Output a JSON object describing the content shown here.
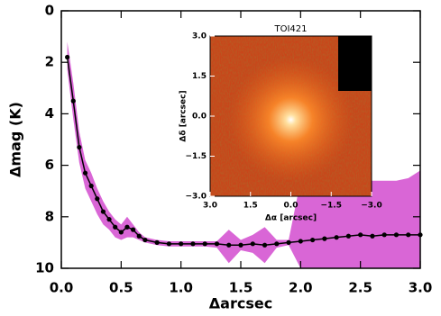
{
  "chart_data": [
    {
      "type": "line",
      "xlabel": "Δarcsec",
      "ylabel": "Δmag (K)",
      "x": [
        0.05,
        0.1,
        0.15,
        0.2,
        0.25,
        0.3,
        0.35,
        0.4,
        0.45,
        0.5,
        0.55,
        0.6,
        0.65,
        0.7,
        0.8,
        0.9,
        1.0,
        1.1,
        1.2,
        1.3,
        1.4,
        1.5,
        1.6,
        1.7,
        1.8,
        1.9,
        2.0,
        2.1,
        2.2,
        2.3,
        2.4,
        2.5,
        2.6,
        2.7,
        2.8,
        2.9,
        3.0
      ],
      "values": [
        1.8,
        3.5,
        5.3,
        6.3,
        6.8,
        7.3,
        7.8,
        8.1,
        8.4,
        8.6,
        8.4,
        8.5,
        8.75,
        8.9,
        9.0,
        9.05,
        9.05,
        9.05,
        9.05,
        9.05,
        9.1,
        9.1,
        9.05,
        9.1,
        9.05,
        9.0,
        8.95,
        8.9,
        8.85,
        8.8,
        8.75,
        8.7,
        8.75,
        8.7,
        8.7,
        8.7,
        8.7
      ],
      "band_upper": [
        1.2,
        2.8,
        4.7,
        5.8,
        6.3,
        6.9,
        7.4,
        7.8,
        8.1,
        8.3,
        8.0,
        8.3,
        8.6,
        8.8,
        8.9,
        8.95,
        8.95,
        8.95,
        8.95,
        8.95,
        8.5,
        8.9,
        8.7,
        8.4,
        8.9,
        8.9,
        6.6,
        6.6,
        6.6,
        6.6,
        6.6,
        6.6,
        6.6,
        6.6,
        6.6,
        6.5,
        6.2
      ],
      "band_lower": [
        2.3,
        4.2,
        5.9,
        6.9,
        7.4,
        7.9,
        8.3,
        8.5,
        8.8,
        8.9,
        8.8,
        8.8,
        8.9,
        9.0,
        9.1,
        9.15,
        9.15,
        9.15,
        9.15,
        9.2,
        9.8,
        9.3,
        9.4,
        9.8,
        9.2,
        9.1,
        10,
        10,
        10,
        10,
        10,
        10,
        10,
        10,
        10,
        10,
        10
      ],
      "color": "#000000",
      "band_color": "#d966d6",
      "xlim": [
        0,
        3
      ],
      "ylim": [
        10,
        0
      ],
      "xticks": [
        {
          "value": 0,
          "label": "0.0"
        },
        {
          "value": 0.5,
          "label": "0.5"
        },
        {
          "value": 1,
          "label": "1.0"
        },
        {
          "value": 1.5,
          "label": "1.5"
        },
        {
          "value": 2,
          "label": "2.0"
        },
        {
          "value": 2.5,
          "label": "2.5"
        },
        {
          "value": 3,
          "label": "3.0"
        }
      ],
      "yticks": [
        0,
        2,
        4,
        6,
        8,
        10
      ]
    },
    {
      "type": "image",
      "title": "TOI421",
      "xlabel": "Δα [arcsec]",
      "ylabel": "Δδ [arcsec]",
      "xlim": [
        3,
        -3
      ],
      "ylim": [
        -3,
        3
      ],
      "xticks": [
        {
          "value": 3,
          "label": "3.0"
        },
        {
          "value": 1.5,
          "label": "1.5"
        },
        {
          "value": 0,
          "label": "0.0"
        },
        {
          "value": -1.5,
          "label": "−1.5"
        },
        {
          "value": -3,
          "label": "−3.0"
        }
      ],
      "yticks": [
        {
          "value": 3,
          "label": "3.0"
        },
        {
          "value": 1.5,
          "label": "1.5"
        },
        {
          "value": 0,
          "label": "0.0"
        },
        {
          "value": -1.5,
          "label": "−1.5"
        },
        {
          "value": -3,
          "label": "−3.0"
        }
      ]
    }
  ]
}
